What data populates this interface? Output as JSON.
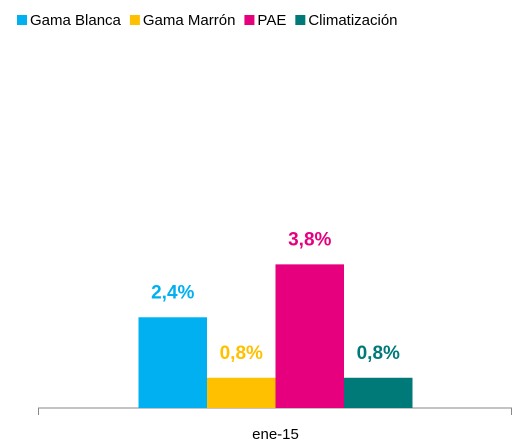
{
  "chart_data": {
    "type": "bar",
    "categories": [
      "ene-15"
    ],
    "series": [
      {
        "name": "Gama Blanca",
        "color": "#00b0f0",
        "values": [
          2.4
        ],
        "value_labels": [
          "2,4%"
        ]
      },
      {
        "name": "Gama Marrón",
        "color": "#ffc000",
        "values": [
          0.8
        ],
        "value_labels": [
          "0,8%"
        ]
      },
      {
        "name": "PAE",
        "color": "#e6007e",
        "values": [
          3.8
        ],
        "value_labels": [
          "3,8%"
        ]
      },
      {
        "name": "Climatización",
        "color": "#007a78",
        "values": [
          0.8
        ],
        "value_labels": [
          "0,8%"
        ]
      }
    ],
    "legend": "top"
  }
}
